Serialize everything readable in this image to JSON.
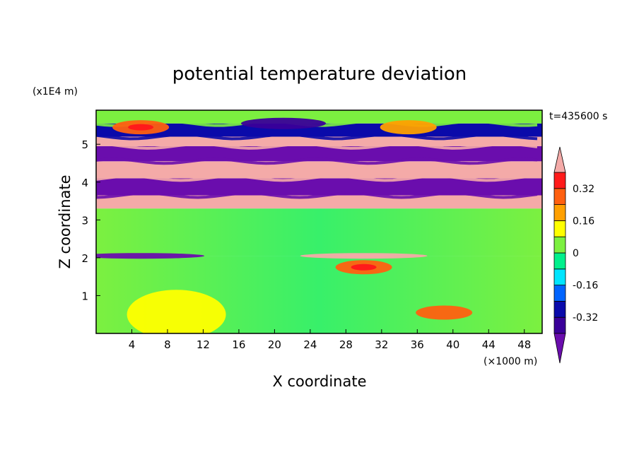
{
  "chart_data": {
    "type": "heatmap",
    "title": "potential temperature deviation",
    "xlabel": "X coordinate",
    "ylabel": "Z coordinate",
    "x_unit": "(×1000 m)",
    "y_unit": "(x1E4 m)",
    "time_label": "t=435600 s",
    "xlim": [
      0,
      50
    ],
    "ylim": [
      0,
      5.9
    ],
    "x_ticks": [
      4,
      8,
      12,
      16,
      20,
      24,
      28,
      32,
      36,
      40,
      44,
      48
    ],
    "y_ticks": [
      1,
      2,
      3,
      4,
      5
    ],
    "colorbar": {
      "levels": [
        -0.48,
        -0.4,
        -0.32,
        -0.24,
        -0.16,
        -0.08,
        0,
        0.08,
        0.16,
        0.24,
        0.32,
        0.4
      ],
      "tick_labels": [
        "0.32",
        "0.16",
        "0",
        "-0.16",
        "-0.32"
      ],
      "tick_values": [
        0.32,
        0.16,
        0,
        -0.16,
        -0.32
      ],
      "colors_low_to_high": [
        "#6a0dad",
        "#3a0099",
        "#0a0aaa",
        "#0064ff",
        "#00e5ff",
        "#00f08c",
        "#7cf040",
        "#ffff00",
        "#ffa000",
        "#ff6010",
        "#ff1a1a",
        "#f4aaa8"
      ],
      "extend": "both"
    },
    "bands": [
      {
        "z": [
          0.0,
          2.05
        ],
        "value": 0.0
      },
      {
        "z": [
          2.05,
          3.3
        ],
        "value": 0.06
      },
      {
        "z": [
          3.3,
          3.65
        ],
        "value": 0.45
      },
      {
        "z": [
          3.65,
          4.1
        ],
        "value": -0.5
      },
      {
        "z": [
          4.1,
          4.55
        ],
        "value": 0.45
      },
      {
        "z": [
          4.55,
          4.95
        ],
        "value": -0.5
      },
      {
        "z": [
          4.95,
          5.2
        ],
        "value": 0.45
      },
      {
        "z": [
          5.2,
          5.55
        ],
        "value": -0.3
      },
      {
        "z": [
          5.55,
          5.9
        ],
        "value": 0.02
      }
    ],
    "features": [
      {
        "x": 5,
        "z": 5.45,
        "value": 0.3
      },
      {
        "x": 35,
        "z": 5.45,
        "value": 0.2
      },
      {
        "x": 21,
        "z": 5.55,
        "value": -0.4
      },
      {
        "x": 30,
        "z": 1.75,
        "value": 0.3
      },
      {
        "x": 39,
        "z": 0.55,
        "value": 0.25
      },
      {
        "x": 9,
        "z": 0.5,
        "value": 0.12
      },
      {
        "x": 30,
        "z": 2.05,
        "value": 0.45
      },
      {
        "x": 5,
        "z": 2.05,
        "value": -0.5
      }
    ]
  }
}
